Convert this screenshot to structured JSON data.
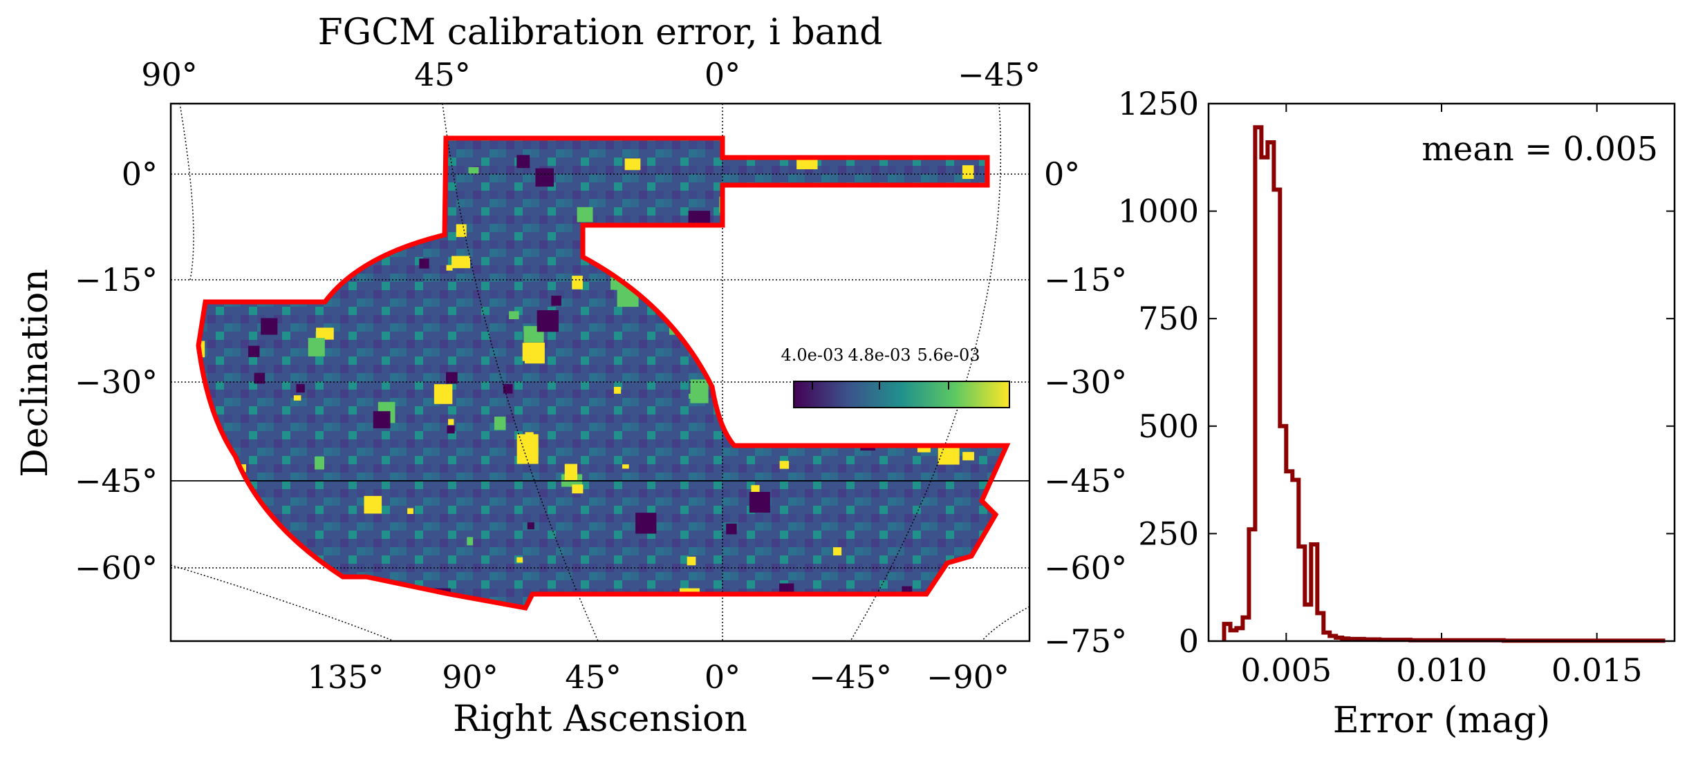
{
  "chart_data": [
    {
      "type": "heatmap",
      "title": "FGCM calibration error, i band",
      "xlabel": "Right Ascension",
      "ylabel": "Declination",
      "projection": "McBryde-Thomas flat polar quartic (sky map)",
      "top_ticks": [
        "90°",
        "45°",
        "0°",
        "−45°"
      ],
      "bottom_ticks": [
        "135°",
        "90°",
        "45°",
        "0°",
        "−45°",
        "−90°"
      ],
      "left_ticks": [
        "0°",
        "−15°",
        "−30°",
        "−45°",
        "−60°"
      ],
      "right_ticks": [
        "0°",
        "−15°",
        "−30°",
        "−45°",
        "−60°",
        "−75°"
      ],
      "colorbar": {
        "colormap": "viridis",
        "ticks": [
          "4.0e-03",
          "4.8e-03",
          "5.6e-03"
        ],
        "range": [
          0.0037,
          0.006
        ]
      },
      "footprint_outline_color": "#ff0000",
      "grid": true
    },
    {
      "type": "histogram",
      "xlabel": "Error (mag)",
      "ylabel": "",
      "annotation": "mean = 0.005",
      "line_color": "#8b0000",
      "xlim": [
        0.0025,
        0.0175
      ],
      "ylim": [
        0,
        1250
      ],
      "x_ticks": [
        "0.005",
        "0.010",
        "0.015"
      ],
      "y_ticks": [
        "0",
        "250",
        "500",
        "750",
        "1000",
        "1250"
      ],
      "bin_width": 0.0002,
      "bins": [
        {
          "x": 0.003,
          "y": 40
        },
        {
          "x": 0.0032,
          "y": 25
        },
        {
          "x": 0.0034,
          "y": 30
        },
        {
          "x": 0.0036,
          "y": 55
        },
        {
          "x": 0.0038,
          "y": 260
        },
        {
          "x": 0.004,
          "y": 1195
        },
        {
          "x": 0.0042,
          "y": 1125
        },
        {
          "x": 0.0044,
          "y": 1160
        },
        {
          "x": 0.0046,
          "y": 1050
        },
        {
          "x": 0.0048,
          "y": 500
        },
        {
          "x": 0.005,
          "y": 395
        },
        {
          "x": 0.0052,
          "y": 375
        },
        {
          "x": 0.0054,
          "y": 220
        },
        {
          "x": 0.0056,
          "y": 85
        },
        {
          "x": 0.0058,
          "y": 225
        },
        {
          "x": 0.006,
          "y": 65
        },
        {
          "x": 0.0062,
          "y": 20
        },
        {
          "x": 0.0064,
          "y": 12
        },
        {
          "x": 0.0066,
          "y": 8
        },
        {
          "x": 0.0068,
          "y": 6
        },
        {
          "x": 0.007,
          "y": 5
        },
        {
          "x": 0.0075,
          "y": 4
        },
        {
          "x": 0.008,
          "y": 3
        },
        {
          "x": 0.009,
          "y": 2
        },
        {
          "x": 0.01,
          "y": 2
        },
        {
          "x": 0.012,
          "y": 1
        },
        {
          "x": 0.014,
          "y": 1
        },
        {
          "x": 0.016,
          "y": 1
        }
      ]
    }
  ]
}
